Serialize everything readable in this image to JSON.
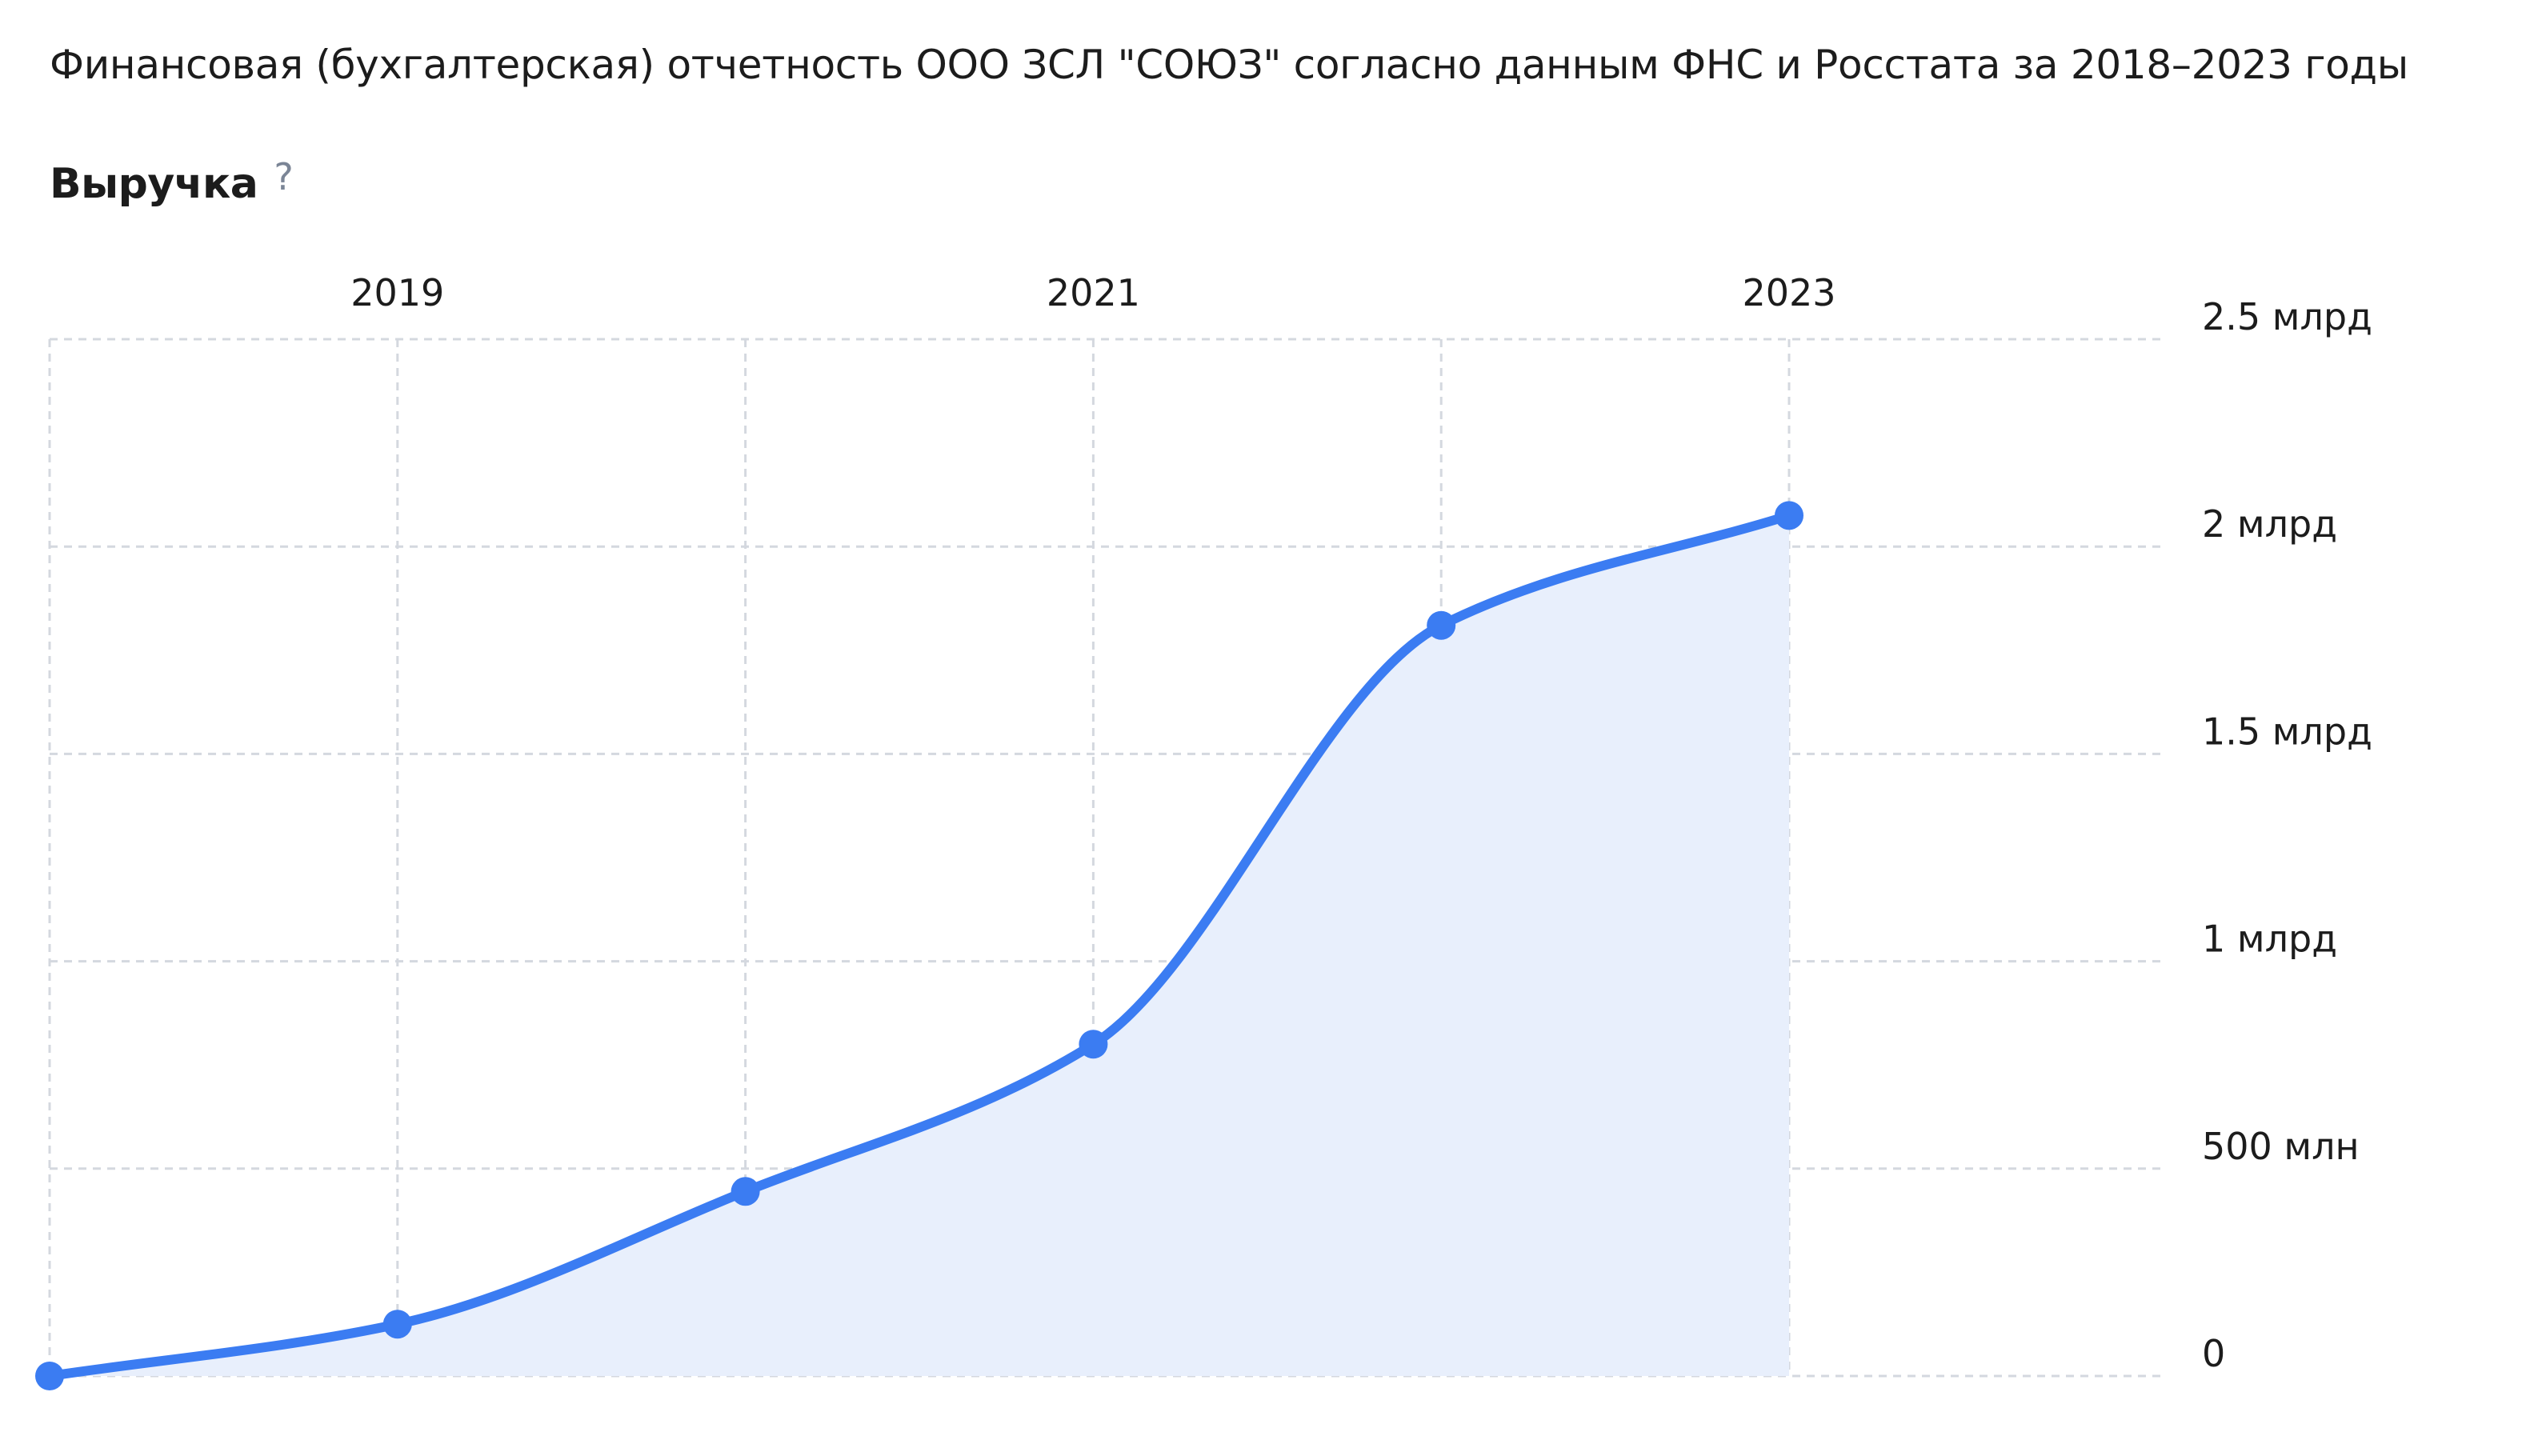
{
  "page": {
    "title": "Финансовая (бухгалтерская) отчетность ООО ЗСЛ \"СОЮЗ\" согласно данным ФНС и Росстата за 2018–2023 годы",
    "section_title": "Выручка",
    "help_icon": "?"
  },
  "colors": {
    "line": "#3b7cf2",
    "area": "#e8effc",
    "grid": "#d4d8df",
    "text": "#1c1c1c",
    "help": "#7b8596"
  },
  "chart_data": {
    "type": "area",
    "title": "Выручка",
    "x": [
      2018,
      2019,
      2020,
      2021,
      2022,
      2023
    ],
    "x_tick_labels": [
      "2019",
      "2021",
      "2023"
    ],
    "x_tick_values": [
      2019,
      2021,
      2023
    ],
    "y_tick_labels": [
      "0",
      "500 млн",
      "1 млрд",
      "1.5 млрд",
      "2 млрд",
      "2.5 млрд"
    ],
    "y_tick_values": [
      0,
      500000000,
      1000000000,
      1500000000,
      2000000000,
      2500000000
    ],
    "series": [
      {
        "values": [
          0,
          125000000,
          445000000,
          800000000,
          1810000000,
          2075000000
        ]
      }
    ],
    "xlim": [
      2018,
      2023
    ],
    "ylim": [
      0,
      2500000000
    ],
    "xaxis_position": "top",
    "yaxis_position": "right",
    "grid": true,
    "grid_style": "dashed"
  }
}
